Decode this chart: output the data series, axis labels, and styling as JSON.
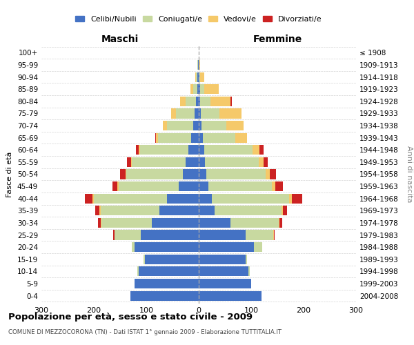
{
  "age_groups": [
    "0-4",
    "5-9",
    "10-14",
    "15-19",
    "20-24",
    "25-29",
    "30-34",
    "35-39",
    "40-44",
    "45-49",
    "50-54",
    "55-59",
    "60-64",
    "65-69",
    "70-74",
    "75-79",
    "80-84",
    "85-89",
    "90-94",
    "95-99",
    "100+"
  ],
  "birth_years": [
    "2004-2008",
    "1999-2003",
    "1994-1998",
    "1989-1993",
    "1984-1988",
    "1979-1983",
    "1974-1978",
    "1969-1973",
    "1964-1968",
    "1959-1963",
    "1954-1958",
    "1949-1953",
    "1944-1948",
    "1939-1943",
    "1934-1938",
    "1929-1933",
    "1924-1928",
    "1919-1923",
    "1914-1918",
    "1909-1913",
    "≤ 1908"
  ],
  "maschi": {
    "celibi": [
      130,
      122,
      115,
      102,
      122,
      110,
      90,
      75,
      60,
      38,
      30,
      25,
      20,
      15,
      10,
      8,
      5,
      3,
      2,
      1,
      0
    ],
    "coniugati": [
      0,
      0,
      2,
      3,
      5,
      50,
      95,
      112,
      140,
      115,
      108,
      102,
      92,
      62,
      50,
      35,
      20,
      8,
      3,
      1,
      0
    ],
    "vedovi": [
      0,
      0,
      0,
      0,
      0,
      1,
      2,
      2,
      2,
      2,
      2,
      2,
      3,
      4,
      8,
      9,
      10,
      5,
      2,
      0,
      0
    ],
    "divorziati": [
      0,
      0,
      0,
      0,
      0,
      2,
      5,
      8,
      15,
      10,
      10,
      8,
      5,
      2,
      0,
      0,
      0,
      0,
      0,
      0,
      0
    ]
  },
  "femmine": {
    "nubili": [
      120,
      100,
      95,
      90,
      105,
      90,
      60,
      30,
      25,
      18,
      15,
      12,
      10,
      8,
      5,
      4,
      3,
      2,
      1,
      0,
      0
    ],
    "coniugate": [
      0,
      0,
      2,
      2,
      16,
      52,
      92,
      128,
      148,
      122,
      112,
      102,
      92,
      62,
      48,
      35,
      20,
      8,
      2,
      1,
      0
    ],
    "vedove": [
      0,
      0,
      0,
      0,
      0,
      1,
      2,
      2,
      4,
      6,
      8,
      10,
      14,
      22,
      32,
      42,
      38,
      28,
      8,
      2,
      0
    ],
    "divorziate": [
      0,
      0,
      0,
      0,
      0,
      2,
      5,
      8,
      20,
      14,
      12,
      8,
      8,
      0,
      0,
      0,
      2,
      0,
      0,
      0,
      0
    ]
  },
  "colors": {
    "celibi_nubili": "#4472c4",
    "coniugati": "#c8d9a0",
    "vedovi": "#f5c96a",
    "divorziati": "#cc2222"
  },
  "xlim": 300,
  "title": "Popolazione per età, sesso e stato civile - 2009",
  "subtitle": "COMUNE DI MEZZOCORONA (TN) - Dati ISTAT 1° gennaio 2009 - Elaborazione TUTTITALIA.IT",
  "ylabel": "Fasce di età",
  "ylabel_right": "Anni di nascita",
  "maschi_label": "Maschi",
  "femmine_label": "Femmine",
  "legend_labels": [
    "Celibi/Nubili",
    "Coniugati/e",
    "Vedovi/e",
    "Divorziati/e"
  ]
}
